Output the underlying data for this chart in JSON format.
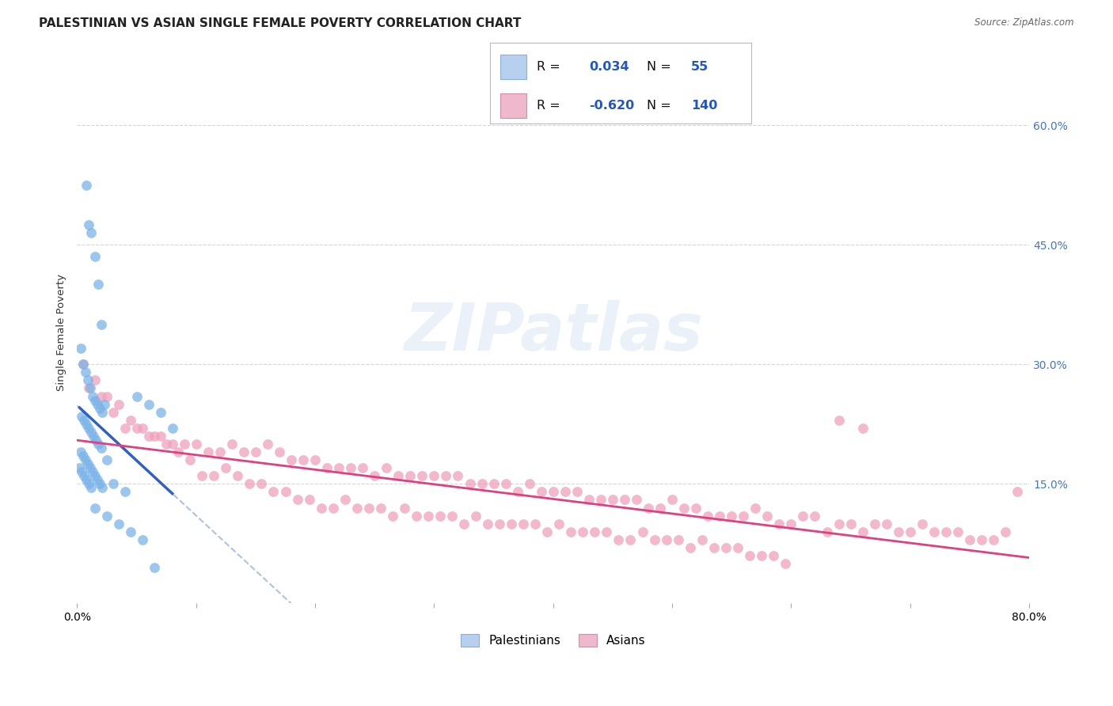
{
  "title": "PALESTINIAN VS ASIAN SINGLE FEMALE POVERTY CORRELATION CHART",
  "source": "Source: ZipAtlas.com",
  "ylabel": "Single Female Poverty",
  "xlim": [
    0,
    0.8
  ],
  "ylim": [
    0,
    0.68
  ],
  "yticks": [
    0.15,
    0.3,
    0.45,
    0.6
  ],
  "ytick_labels": [
    "15.0%",
    "30.0%",
    "45.0%",
    "60.0%"
  ],
  "background_color": "#ffffff",
  "grid_color": "#cccccc",
  "blue_dot_color": "#7ab3e8",
  "pink_dot_color": "#f0a0bc",
  "blue_line_color": "#3060c0",
  "pink_line_color": "#e04080",
  "dashed_line_color": "#a0b8d8",
  "watermark_text": "ZIPatlas",
  "palestinians_x": [
    0.008,
    0.01,
    0.012,
    0.015,
    0.018,
    0.02,
    0.003,
    0.005,
    0.007,
    0.009,
    0.011,
    0.013,
    0.015,
    0.017,
    0.019,
    0.021,
    0.004,
    0.006,
    0.008,
    0.01,
    0.012,
    0.014,
    0.016,
    0.018,
    0.02,
    0.003,
    0.005,
    0.007,
    0.009,
    0.011,
    0.013,
    0.015,
    0.017,
    0.019,
    0.021,
    0.023,
    0.025,
    0.002,
    0.004,
    0.006,
    0.008,
    0.01,
    0.012,
    0.05,
    0.06,
    0.07,
    0.03,
    0.04,
    0.015,
    0.025,
    0.035,
    0.045,
    0.055,
    0.065,
    0.08
  ],
  "palestinians_y": [
    0.525,
    0.475,
    0.465,
    0.435,
    0.4,
    0.35,
    0.32,
    0.3,
    0.29,
    0.28,
    0.27,
    0.26,
    0.255,
    0.25,
    0.245,
    0.24,
    0.235,
    0.23,
    0.225,
    0.22,
    0.215,
    0.21,
    0.205,
    0.2,
    0.195,
    0.19,
    0.185,
    0.18,
    0.175,
    0.17,
    0.165,
    0.16,
    0.155,
    0.15,
    0.145,
    0.25,
    0.18,
    0.17,
    0.165,
    0.16,
    0.155,
    0.15,
    0.145,
    0.26,
    0.25,
    0.24,
    0.15,
    0.14,
    0.12,
    0.11,
    0.1,
    0.09,
    0.08,
    0.045,
    0.22
  ],
  "asians_x": [
    0.01,
    0.02,
    0.03,
    0.04,
    0.05,
    0.06,
    0.07,
    0.08,
    0.09,
    0.1,
    0.11,
    0.12,
    0.13,
    0.14,
    0.15,
    0.16,
    0.17,
    0.18,
    0.19,
    0.2,
    0.21,
    0.22,
    0.23,
    0.24,
    0.25,
    0.26,
    0.27,
    0.28,
    0.29,
    0.3,
    0.31,
    0.32,
    0.33,
    0.34,
    0.35,
    0.36,
    0.37,
    0.38,
    0.39,
    0.4,
    0.41,
    0.42,
    0.43,
    0.44,
    0.45,
    0.46,
    0.47,
    0.48,
    0.49,
    0.5,
    0.51,
    0.52,
    0.53,
    0.54,
    0.55,
    0.56,
    0.57,
    0.58,
    0.59,
    0.6,
    0.61,
    0.62,
    0.63,
    0.64,
    0.65,
    0.66,
    0.67,
    0.68,
    0.69,
    0.7,
    0.71,
    0.72,
    0.73,
    0.74,
    0.75,
    0.76,
    0.77,
    0.78,
    0.005,
    0.015,
    0.025,
    0.035,
    0.045,
    0.055,
    0.065,
    0.075,
    0.085,
    0.095,
    0.105,
    0.115,
    0.125,
    0.135,
    0.145,
    0.155,
    0.165,
    0.175,
    0.185,
    0.195,
    0.205,
    0.215,
    0.225,
    0.235,
    0.245,
    0.255,
    0.265,
    0.275,
    0.285,
    0.295,
    0.305,
    0.315,
    0.325,
    0.335,
    0.345,
    0.355,
    0.365,
    0.375,
    0.385,
    0.395,
    0.405,
    0.415,
    0.425,
    0.435,
    0.445,
    0.455,
    0.465,
    0.475,
    0.485,
    0.495,
    0.505,
    0.515,
    0.525,
    0.535,
    0.545,
    0.555,
    0.565,
    0.575,
    0.585,
    0.595,
    0.64,
    0.66,
    0.79
  ],
  "asians_y": [
    0.27,
    0.26,
    0.24,
    0.22,
    0.22,
    0.21,
    0.21,
    0.2,
    0.2,
    0.2,
    0.19,
    0.19,
    0.2,
    0.19,
    0.19,
    0.2,
    0.19,
    0.18,
    0.18,
    0.18,
    0.17,
    0.17,
    0.17,
    0.17,
    0.16,
    0.17,
    0.16,
    0.16,
    0.16,
    0.16,
    0.16,
    0.16,
    0.15,
    0.15,
    0.15,
    0.15,
    0.14,
    0.15,
    0.14,
    0.14,
    0.14,
    0.14,
    0.13,
    0.13,
    0.13,
    0.13,
    0.13,
    0.12,
    0.12,
    0.13,
    0.12,
    0.12,
    0.11,
    0.11,
    0.11,
    0.11,
    0.12,
    0.11,
    0.1,
    0.1,
    0.11,
    0.11,
    0.09,
    0.1,
    0.1,
    0.09,
    0.1,
    0.1,
    0.09,
    0.09,
    0.1,
    0.09,
    0.09,
    0.09,
    0.08,
    0.08,
    0.08,
    0.09,
    0.3,
    0.28,
    0.26,
    0.25,
    0.23,
    0.22,
    0.21,
    0.2,
    0.19,
    0.18,
    0.16,
    0.16,
    0.17,
    0.16,
    0.15,
    0.15,
    0.14,
    0.14,
    0.13,
    0.13,
    0.12,
    0.12,
    0.13,
    0.12,
    0.12,
    0.12,
    0.11,
    0.12,
    0.11,
    0.11,
    0.11,
    0.11,
    0.1,
    0.11,
    0.1,
    0.1,
    0.1,
    0.1,
    0.1,
    0.09,
    0.1,
    0.09,
    0.09,
    0.09,
    0.09,
    0.08,
    0.08,
    0.09,
    0.08,
    0.08,
    0.08,
    0.07,
    0.08,
    0.07,
    0.07,
    0.07,
    0.06,
    0.06,
    0.06,
    0.05,
    0.23,
    0.22,
    0.14
  ]
}
